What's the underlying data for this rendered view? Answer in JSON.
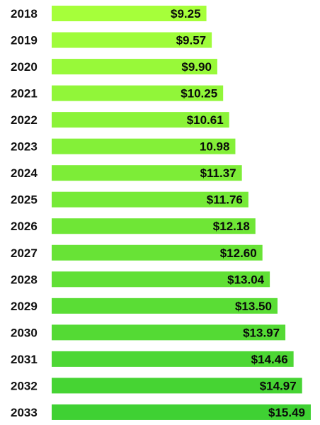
{
  "chart_data": {
    "type": "bar",
    "orientation": "horizontal",
    "categories": [
      "2018",
      "2019",
      "2020",
      "2021",
      "2022",
      "2023",
      "2024",
      "2025",
      "2026",
      "2027",
      "2028",
      "2029",
      "2030",
      "2031",
      "2032",
      "2033"
    ],
    "values": [
      9.25,
      9.57,
      9.9,
      10.25,
      10.61,
      10.98,
      11.37,
      11.76,
      12.18,
      12.6,
      13.04,
      13.5,
      13.97,
      14.46,
      14.97,
      15.49
    ],
    "data_labels": [
      "$9.25",
      "$9.57",
      "$9.90",
      "$10.25",
      "$10.61",
      "10.98",
      "$11.37",
      "$11.76",
      "$12.18",
      "$12.60",
      "$13.04",
      "$13.50",
      "$13.97",
      "$14.46",
      "$14.97",
      "$15.49"
    ],
    "title": "",
    "xlabel": "",
    "ylabel": "",
    "xlim": [
      0,
      15.49
    ],
    "grid": false,
    "legend": "none",
    "bar_color_start": "#a6ff3a",
    "bar_color_end": "#3fd133"
  }
}
